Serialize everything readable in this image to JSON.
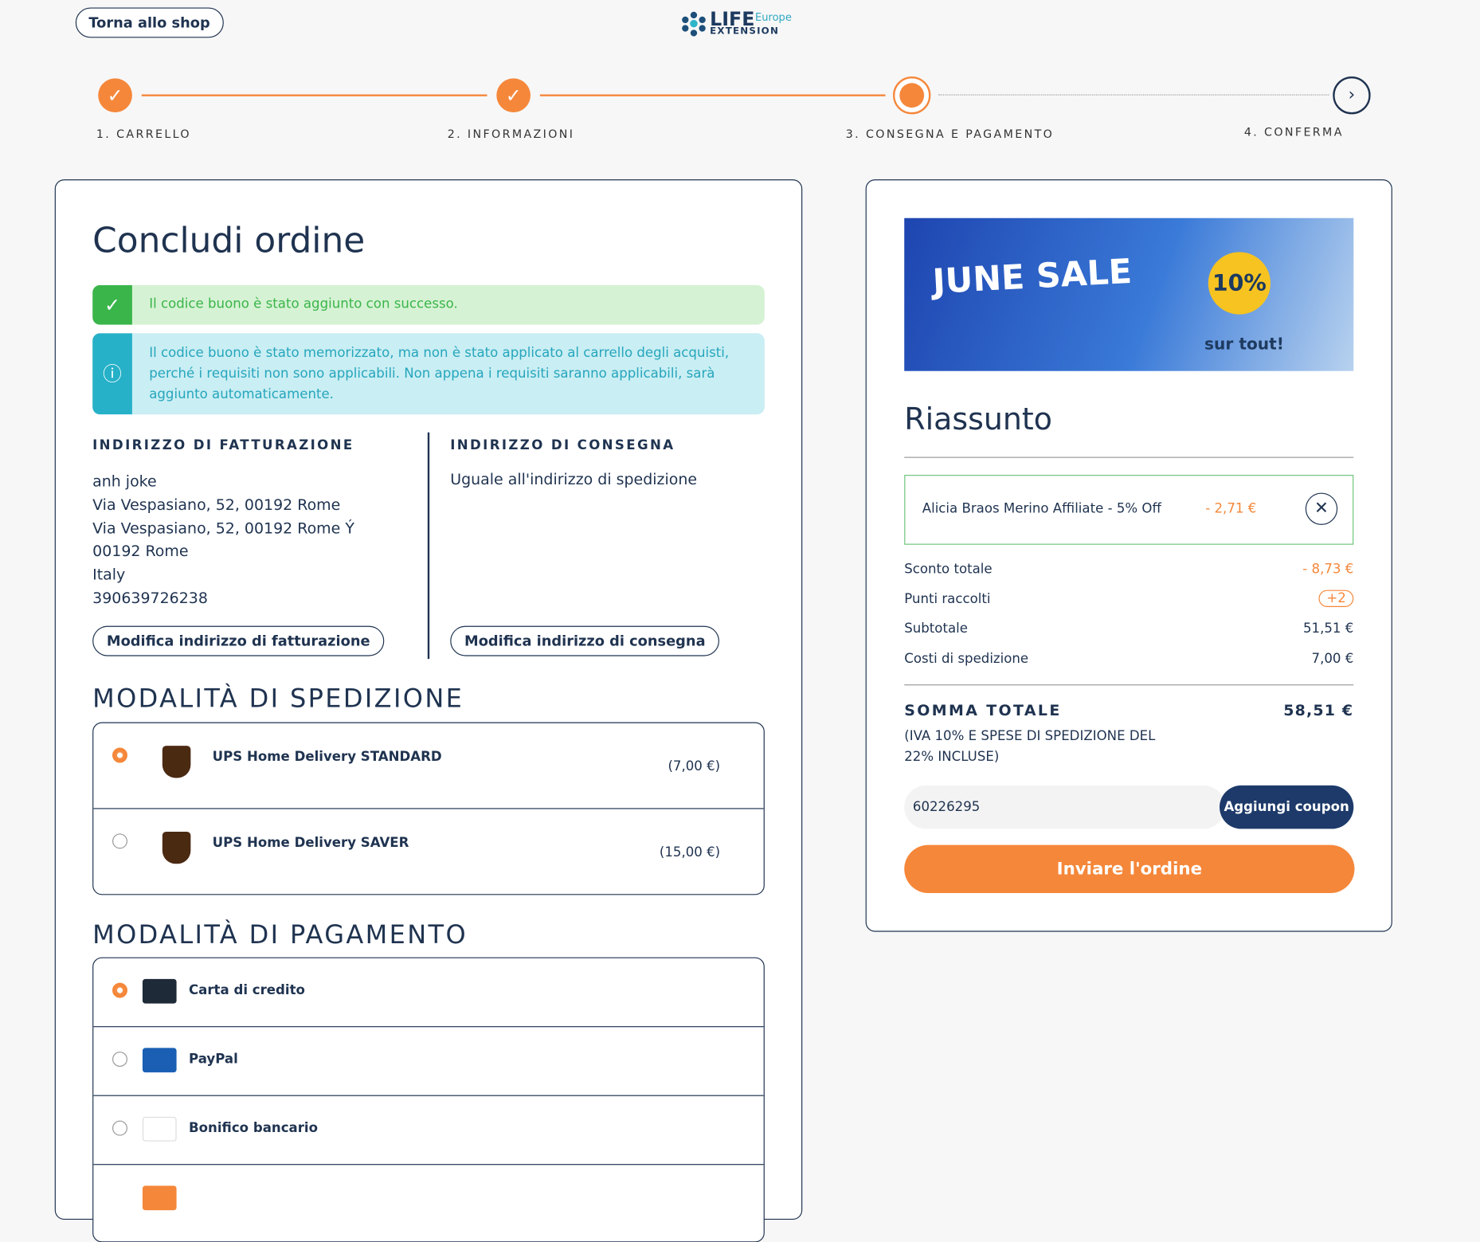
{
  "header": {
    "back_button": "Torna allo shop",
    "logo": {
      "name": "LIFE",
      "region": "Europe",
      "sub": "EXTENSION"
    }
  },
  "steps": [
    "1. CARRELLO",
    "2. INFORMAZIONI",
    "3. CONSEGNA E PAGAMENTO",
    "4. CONFERMA"
  ],
  "order": {
    "title": "Concludi ordine",
    "alerts": [
      "Il codice buono è stato aggiunto con successo.",
      "Il codice buono è stato memorizzato, ma non è stato applicato al carrello degli acquisti, perché i requisiti non sono applicabili. Non appena i requisiti saranno applicabili, sarà aggiunto automaticamente."
    ],
    "billing": {
      "heading": "INDIRIZZO DI FATTURAZIONE",
      "lines": [
        "anh joke",
        "Via Vespasiano, 52, 00192 Rome",
        "Via Vespasiano, 52, 00192 Rome Ý",
        "00192 Rome",
        "Italy",
        "390639726238"
      ],
      "button": "Modifica indirizzo di fatturazione"
    },
    "delivery": {
      "heading": "INDIRIZZO DI CONSEGNA",
      "text": "Uguale all'indirizzo di spedizione",
      "button": "Modifica indirizzo di consegna"
    },
    "shipping": {
      "heading": "MODALITÀ DI SPEDIZIONE",
      "options": [
        {
          "name": "UPS Home Delivery STANDARD",
          "price": "(7,00 €)"
        },
        {
          "name": "UPS Home Delivery SAVER",
          "price": "(15,00 €)"
        }
      ]
    },
    "payment": {
      "heading": "MODALITÀ DI PAGAMENTO",
      "options": [
        "Carta di credito",
        "PayPal",
        "Bonifico bancario"
      ]
    }
  },
  "summary": {
    "banner": {
      "title": "JUNE SALE",
      "badge": "10%",
      "tagline": "sur tout!"
    },
    "title": "Riassunto",
    "coupon": {
      "name": "Alicia Braos Merino Affiliate - 5% Off",
      "discount": "- 2,71 €"
    },
    "rows": [
      {
        "label": "Sconto totale",
        "value": "- 8,73 €"
      },
      {
        "label": "Punti raccolti",
        "value": "+2"
      },
      {
        "label": "Subtotale",
        "value": "51,51 €"
      },
      {
        "label": "Costi di spedizione",
        "value": "7,00 €"
      }
    ],
    "total": {
      "label": "SOMMA TOTALE",
      "value": "58,51 €",
      "note": "(IVA 10% E SPESE DI SPEDIZIONE DEL 22% INCLUSE)"
    },
    "coupon_input": "60226295",
    "coupon_button": "Aggiungi coupon",
    "submit": "Inviare l'ordine"
  }
}
